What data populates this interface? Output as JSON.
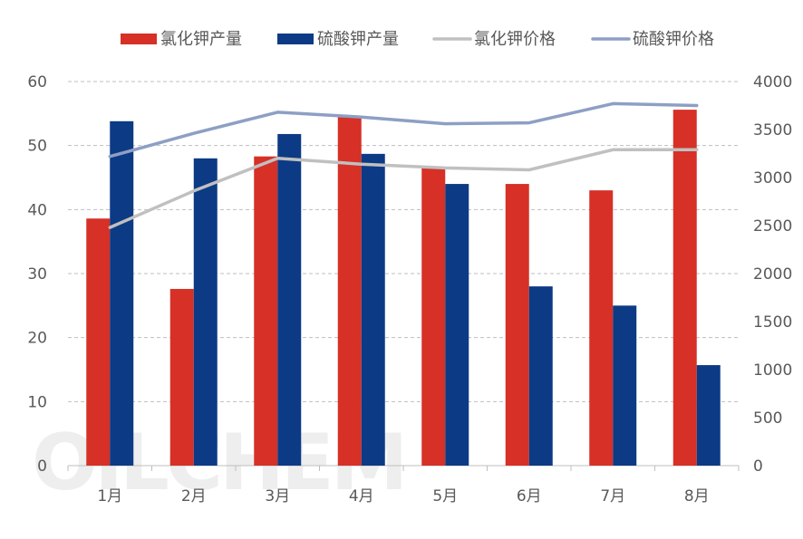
{
  "chart_data": {
    "type": "bar",
    "categories": [
      "1月",
      "2月",
      "3月",
      "4月",
      "5月",
      "6月",
      "7月",
      "8月"
    ],
    "series": [
      {
        "name": "氯化钾产量",
        "type": "bar",
        "axis": "left",
        "color": "#d63027",
        "values": [
          38.6,
          27.6,
          48.3,
          54.6,
          46.6,
          44.0,
          43.0,
          55.6
        ]
      },
      {
        "name": "硫酸钾产量",
        "type": "bar",
        "axis": "left",
        "color": "#0d3a85",
        "values": [
          53.8,
          48.0,
          51.8,
          48.7,
          44.0,
          28.0,
          25.0,
          15.7
        ]
      },
      {
        "name": "氯化钾价格",
        "type": "line",
        "axis": "right",
        "color": "#c0c0c0",
        "values": [
          2480,
          2860,
          3200,
          3140,
          3100,
          3080,
          3290,
          3290
        ]
      },
      {
        "name": "硫酸钾价格",
        "type": "line",
        "axis": "right",
        "color": "#8d9fc4",
        "values": [
          3220,
          3460,
          3680,
          3630,
          3560,
          3570,
          3770,
          3750
        ]
      }
    ],
    "y_left": {
      "min": 0,
      "max": 60,
      "ticks": [
        0,
        10,
        20,
        30,
        40,
        50,
        60
      ]
    },
    "y_right": {
      "min": 0,
      "max": 4000,
      "ticks": [
        0,
        500,
        1000,
        1500,
        2000,
        2500,
        3000,
        3500,
        4000
      ]
    },
    "legend_position": "top",
    "grid": "dashed-horizontal",
    "title": "",
    "xlabel": "",
    "ylabel": ""
  },
  "watermark": "OILCHEM"
}
